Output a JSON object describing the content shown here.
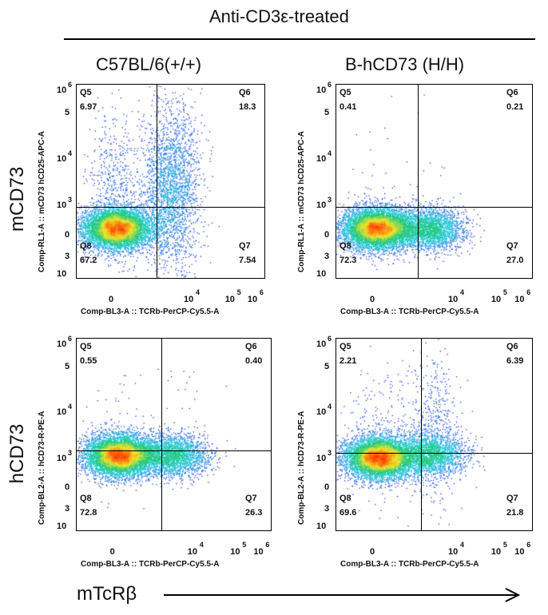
{
  "figure": {
    "header": "Anti-CD3ε-treated",
    "columns": [
      "C57BL/6(+/+)",
      "B-hCD73 (H/H)"
    ],
    "rows": [
      "mCD73",
      "hCD73"
    ],
    "bottom_label": "mTcRβ"
  },
  "chart_data": [
    {
      "type": "scatter",
      "panel": "C57BL/6(+/+) mCD73",
      "xlabel": "Comp-BL3-A :: TCRb-PerCP-Cy5.5-A",
      "ylabel": "Comp-RL1-A :: mCD73 hCD25-APC-A",
      "quadrants": {
        "Q5": "6.97",
        "Q6": "18.3",
        "Q7": "7.54",
        "Q8": "67.2"
      },
      "clusters": [
        {
          "x": 0,
          "y": 0,
          "weight": 67.2
        },
        {
          "x": 5000,
          "y": 7000,
          "weight": 18.3
        },
        {
          "x": 5000,
          "y": 200,
          "weight": 7.54
        },
        {
          "x": 0,
          "y": 3000,
          "weight": 6.97
        }
      ]
    },
    {
      "type": "scatter",
      "panel": "B-hCD73 (H/H) mCD73",
      "xlabel": "Comp-BL3-A :: TCRb-PerCP-Cy5.5-A",
      "ylabel": "Comp-RL1-A :: mCD73 hCD25-APC-A",
      "quadrants": {
        "Q5": "0.41",
        "Q6": "0.21",
        "Q7": "27.0",
        "Q8": "72.3"
      },
      "clusters": [
        {
          "x": 0,
          "y": 0,
          "weight": 72.3
        },
        {
          "x": 4000,
          "y": 0,
          "weight": 27.0
        },
        {
          "x": 0,
          "y": 3000,
          "weight": 0.41
        },
        {
          "x": 4000,
          "y": 5000,
          "weight": 0.21
        }
      ]
    },
    {
      "type": "scatter",
      "panel": "C57BL/6(+/+) hCD73",
      "xlabel": "Comp-BL3-A :: TCRb-PerCP-Cy5.5-A",
      "ylabel": "Comp-BL2-A :: hCD73-R-PE-A",
      "quadrants": {
        "Q5": "0.55",
        "Q6": "0.40",
        "Q7": "26.3",
        "Q8": "72.8"
      },
      "clusters": [
        {
          "x": 0,
          "y": 500,
          "weight": 72.8
        },
        {
          "x": 4000,
          "y": 500,
          "weight": 26.3
        },
        {
          "x": 0,
          "y": 5000,
          "weight": 0.55
        },
        {
          "x": 4000,
          "y": 5000,
          "weight": 0.4
        }
      ]
    },
    {
      "type": "scatter",
      "panel": "B-hCD73 (H/H) hCD73",
      "xlabel": "Comp-BL3-A :: TCRb-PerCP-Cy5.5-A",
      "ylabel": "Comp-BL2-A :: hCD73-R-PE-A",
      "quadrants": {
        "Q5": "2.21",
        "Q6": "6.39",
        "Q7": "21.8",
        "Q8": "69.6"
      },
      "clusters": [
        {
          "x": 0,
          "y": 500,
          "weight": 69.6
        },
        {
          "x": 4000,
          "y": 800,
          "weight": 21.8
        },
        {
          "x": 4000,
          "y": 4000,
          "weight": 6.39
        },
        {
          "x": 0,
          "y": 4000,
          "weight": 2.21
        }
      ]
    }
  ],
  "axis_ticks": {
    "x": [
      {
        "base": "0"
      },
      {
        "base": "10",
        "exp": "4"
      },
      {
        "base": "10",
        "exp": "5"
      },
      {
        "base": "10",
        "exp": "6"
      }
    ],
    "y": [
      {
        "base": "10",
        "exp": "6"
      },
      {
        "base": "5"
      },
      {
        "base": "10",
        "exp": "4"
      },
      {
        "base": "10",
        "exp": "3"
      },
      {
        "base": "0"
      },
      {
        "base": "3"
      },
      {
        "base": "10"
      }
    ]
  },
  "colors": {
    "density_low": "#1e1ef0",
    "density_mid": "#1ec8a0",
    "density_high": "#ff2a00",
    "gate": "#000000"
  }
}
